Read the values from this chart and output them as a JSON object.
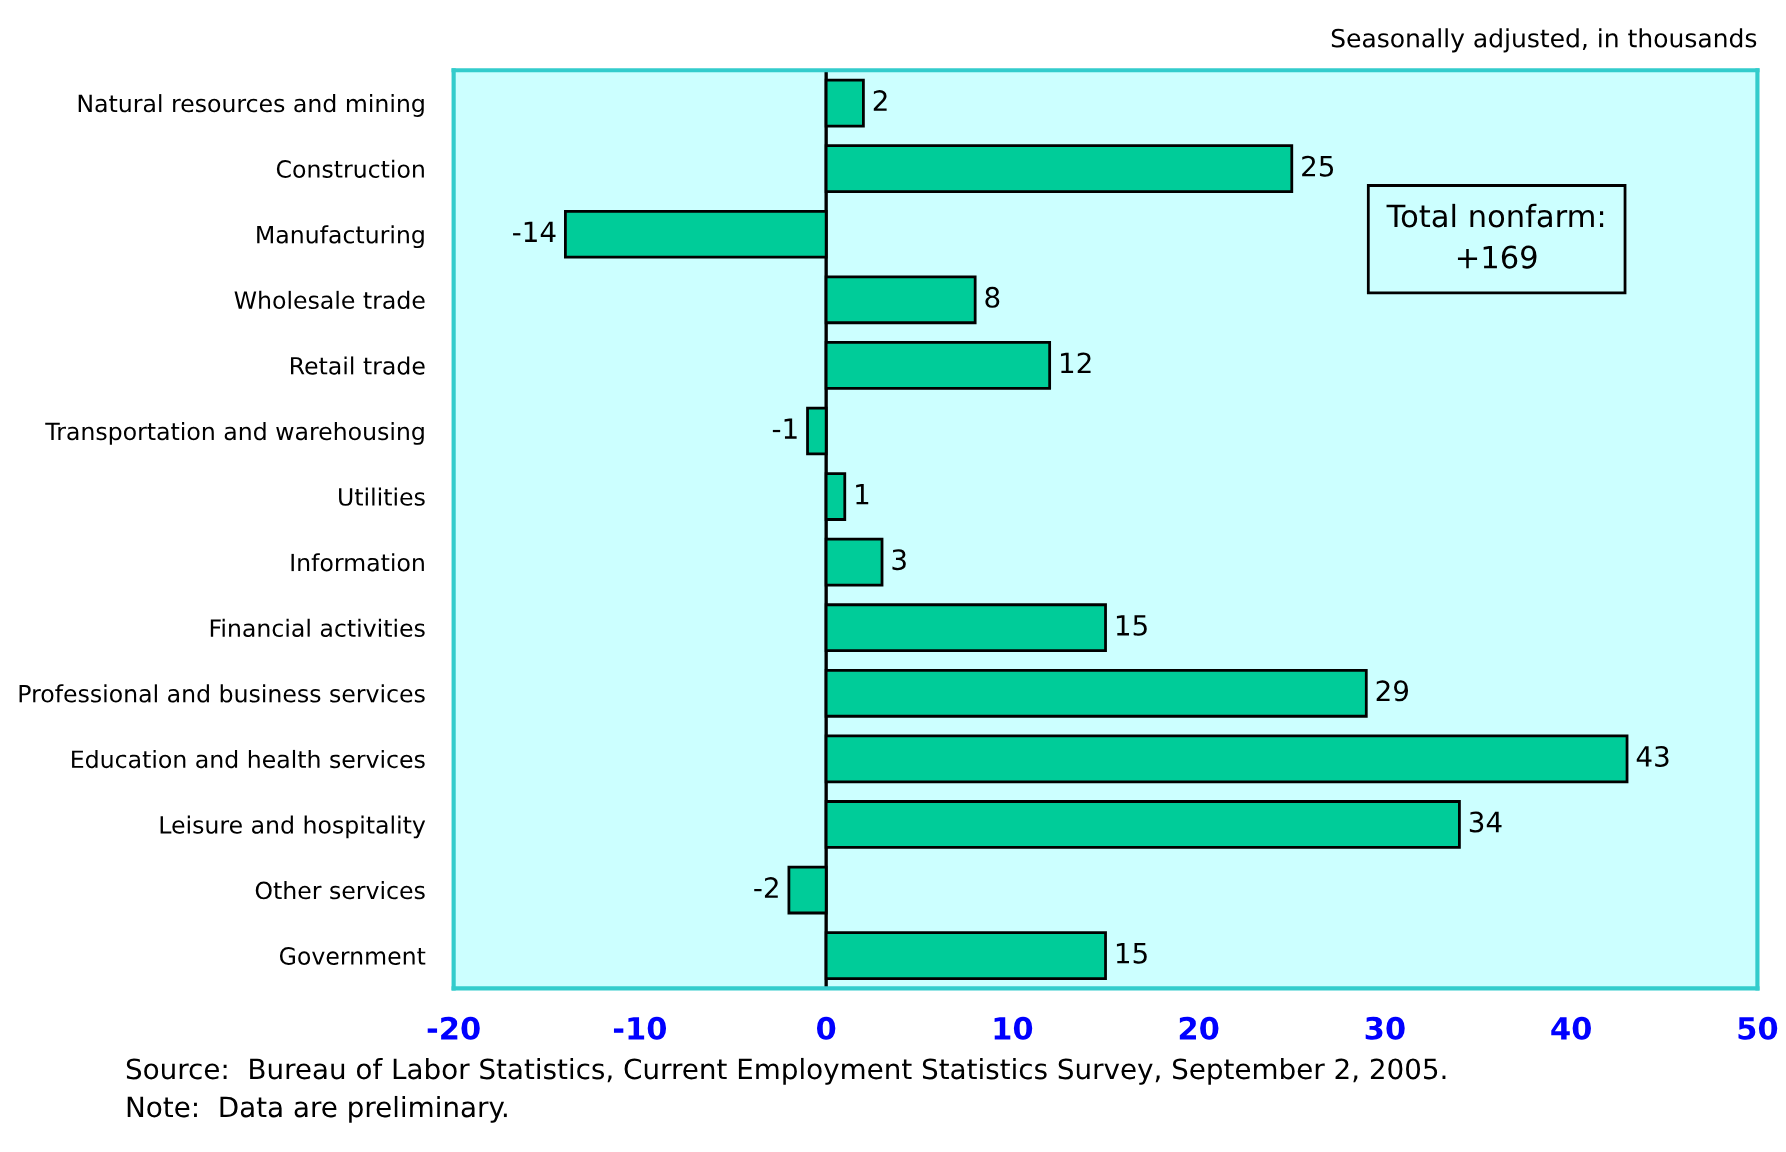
{
  "chart_data": {
    "type": "bar",
    "orientation": "horizontal",
    "subtitle": "Seasonally adjusted, in thousands",
    "categories": [
      "Natural resources and mining",
      "Construction",
      "Manufacturing",
      "Wholesale trade",
      "Retail trade",
      "Transportation and warehousing",
      "Utilities",
      "Information",
      "Financial activities",
      "Professional and business services",
      "Education and health services",
      "Leisure and hospitality",
      "Other services",
      "Government"
    ],
    "values": [
      2,
      25,
      -14,
      8,
      12,
      -1,
      1,
      3,
      15,
      29,
      43,
      34,
      -2,
      15
    ],
    "color": "#00cc99",
    "xlim": [
      -20,
      50
    ],
    "xticks": [
      -20,
      -10,
      0,
      10,
      20,
      30,
      40,
      50
    ],
    "data_labels": true,
    "grid": false,
    "legend": false,
    "ref_lines": [
      {
        "axis": "x",
        "value": 0,
        "color": "#000000"
      }
    ],
    "annotations": [
      {
        "text": "Total nonfarm:\n+169"
      },
      "Source:  Bureau of Labor Statistics, Current Employment Statistics Survey, September 2, 2005.",
      "Note:  Data are preliminary."
    ]
  }
}
